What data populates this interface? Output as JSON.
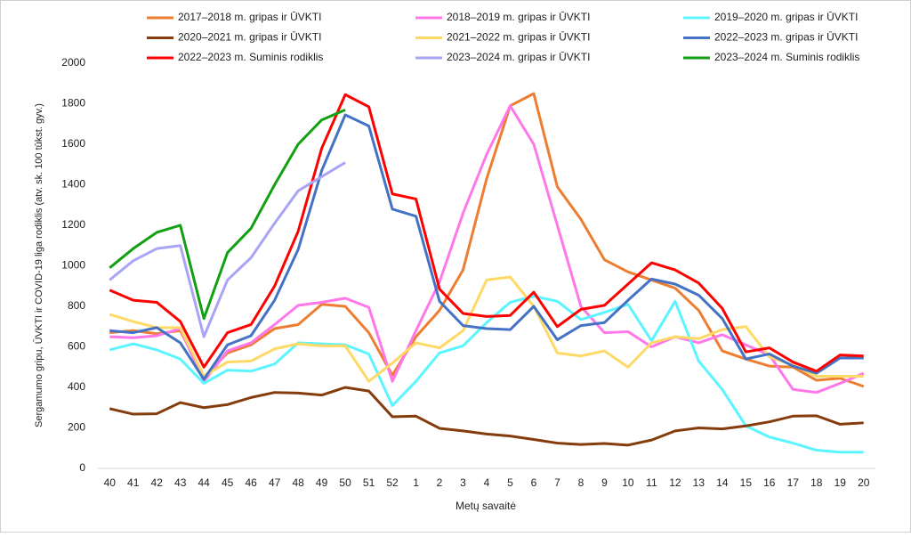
{
  "chart_data": {
    "type": "line",
    "ylabel": "Sergamumo gripu, ŪVKTI  ir COVID-19 liga rodiklis (atv. sk. 100 tūkst. gyv.)",
    "xlabel": "Metų savaitė",
    "categories": [
      "40",
      "41",
      "42",
      "43",
      "44",
      "45",
      "46",
      "47",
      "48",
      "49",
      "50",
      "51",
      "52",
      "1",
      "2",
      "3",
      "4",
      "5",
      "6",
      "7",
      "8",
      "9",
      "10",
      "11",
      "12",
      "13",
      "14",
      "15",
      "16",
      "17",
      "18",
      "19",
      "20"
    ],
    "ylim": [
      0,
      2000
    ],
    "yticks": [
      0,
      200,
      400,
      600,
      800,
      1000,
      1200,
      1400,
      1600,
      1800,
      2000
    ],
    "series": [
      {
        "name": "2017–2018 m. gripas ir ŪVKTI",
        "color": "#ed7d31",
        "values": [
          670,
          680,
          665,
          680,
          450,
          570,
          610,
          690,
          710,
          810,
          800,
          670,
          460,
          650,
          780,
          980,
          1430,
          1790,
          1850,
          1390,
          1230,
          1030,
          970,
          930,
          890,
          780,
          580,
          540,
          505,
          500,
          435,
          445,
          405
        ]
      },
      {
        "name": "2018–2019 m. gripas ir ŪVKTI",
        "color": "#ff77e8",
        "values": [
          650,
          645,
          655,
          690,
          430,
          580,
          620,
          710,
          805,
          820,
          840,
          795,
          430,
          680,
          920,
          1260,
          1550,
          1790,
          1600,
          1200,
          800,
          670,
          675,
          600,
          650,
          620,
          660,
          610,
          560,
          390,
          375,
          420,
          470
        ]
      },
      {
        "name": "2019–2020 m. gripas ir ŪVKTI",
        "color": "#5cf5ff",
        "values": [
          585,
          615,
          585,
          540,
          420,
          485,
          480,
          515,
          620,
          615,
          610,
          565,
          310,
          430,
          570,
          605,
          720,
          820,
          850,
          825,
          735,
          770,
          810,
          630,
          825,
          530,
          390,
          210,
          155,
          125,
          90,
          80,
          80
        ]
      },
      {
        "name": "2020–2021 m. gripas ir ŪVKTI",
        "color": "#843c0c",
        "values": [
          295,
          268,
          270,
          325,
          300,
          315,
          350,
          375,
          372,
          362,
          400,
          382,
          255,
          258,
          198,
          185,
          170,
          160,
          143,
          125,
          118,
          123,
          115,
          140,
          185,
          200,
          195,
          210,
          230,
          258,
          260,
          218,
          225
        ]
      },
      {
        "name": "2021–2022 m. gripas ir ŪVKTI",
        "color": "#ffd966",
        "values": [
          760,
          725,
          695,
          695,
          455,
          525,
          530,
          590,
          615,
          605,
          605,
          430,
          520,
          620,
          595,
          680,
          930,
          945,
          800,
          570,
          555,
          580,
          500,
          620,
          650,
          640,
          685,
          700,
          550,
          510,
          455,
          455,
          455
        ]
      },
      {
        "name": "2022–2023 m. gripas ir ŪVKTI",
        "color": "#4472c4",
        "values": [
          680,
          670,
          695,
          620,
          440,
          610,
          655,
          830,
          1080,
          1470,
          1745,
          1690,
          1280,
          1245,
          825,
          705,
          690,
          685,
          800,
          635,
          705,
          720,
          830,
          935,
          910,
          855,
          740,
          540,
          565,
          505,
          470,
          545,
          545
        ]
      },
      {
        "name": "2022–2023 m. Suminis rodiklis",
        "color": "#ff0000",
        "values": [
          880,
          830,
          820,
          725,
          500,
          670,
          710,
          900,
          1170,
          1580,
          1845,
          1785,
          1355,
          1330,
          885,
          765,
          750,
          755,
          870,
          700,
          785,
          805,
          910,
          1015,
          980,
          915,
          790,
          575,
          595,
          525,
          480,
          560,
          555
        ]
      },
      {
        "name": "2023–2024 m. gripas ir ŪVKTI",
        "color": "#a9a4f5",
        "values": [
          930,
          1025,
          1085,
          1100,
          650,
          930,
          1040,
          1210,
          1370,
          1440,
          1510,
          null,
          null,
          null,
          null,
          null,
          null,
          null,
          null,
          null,
          null,
          null,
          null,
          null,
          null,
          null,
          null,
          null,
          null,
          null,
          null,
          null,
          null
        ]
      },
      {
        "name": "2023–2024 m. Suminis rodiklis",
        "color": "#12a012",
        "values": [
          990,
          1085,
          1165,
          1200,
          740,
          1065,
          1185,
          1400,
          1600,
          1720,
          1770,
          null,
          null,
          null,
          null,
          null,
          null,
          null,
          null,
          null,
          null,
          null,
          null,
          null,
          null,
          null,
          null,
          null,
          null,
          null,
          null,
          null,
          null
        ]
      }
    ]
  }
}
